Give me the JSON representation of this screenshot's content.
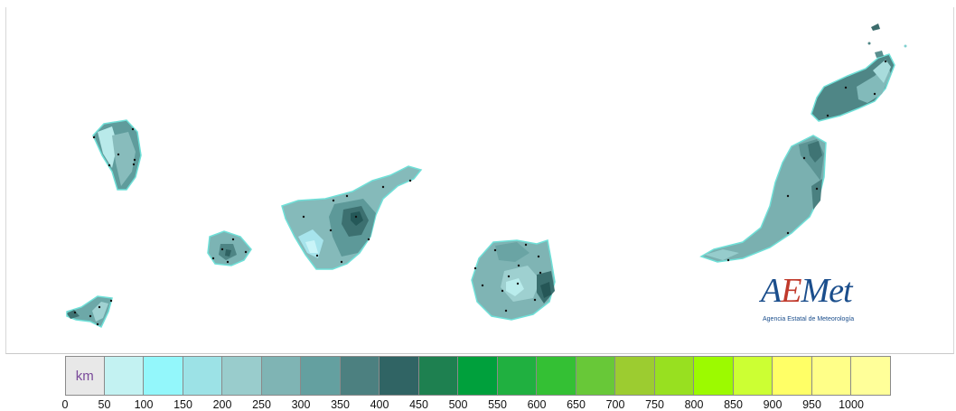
{
  "map": {
    "islands": [
      "La Palma",
      "La Gomera",
      "El Hierro",
      "Tenerife",
      "Gran Canaria",
      "Fuerteventura",
      "Lanzarote"
    ]
  },
  "logo": {
    "part1": "A",
    "part2": "E",
    "part3": "Met",
    "subtitle": "Agencia Estatal de Meteorología"
  },
  "legend": {
    "unit": "km",
    "colors": [
      "#e8e8e8",
      "#c3f2f2",
      "#93f7fb",
      "#9ce2e6",
      "#99cccc",
      "#7fb4b4",
      "#64a0a0",
      "#4c8080",
      "#306464",
      "#1e8050",
      "#00a03c",
      "#20b040",
      "#34c034",
      "#68c838",
      "#9ccc30",
      "#98e020",
      "#9cfa00",
      "#ccff33",
      "#ffff66",
      "#ffff88",
      "#ffff99"
    ],
    "ticks": [
      "0",
      "50",
      "100",
      "150",
      "200",
      "250",
      "300",
      "350",
      "400",
      "450",
      "500",
      "550",
      "600",
      "650",
      "700",
      "750",
      "800",
      "850",
      "900",
      "950",
      "1000"
    ]
  }
}
